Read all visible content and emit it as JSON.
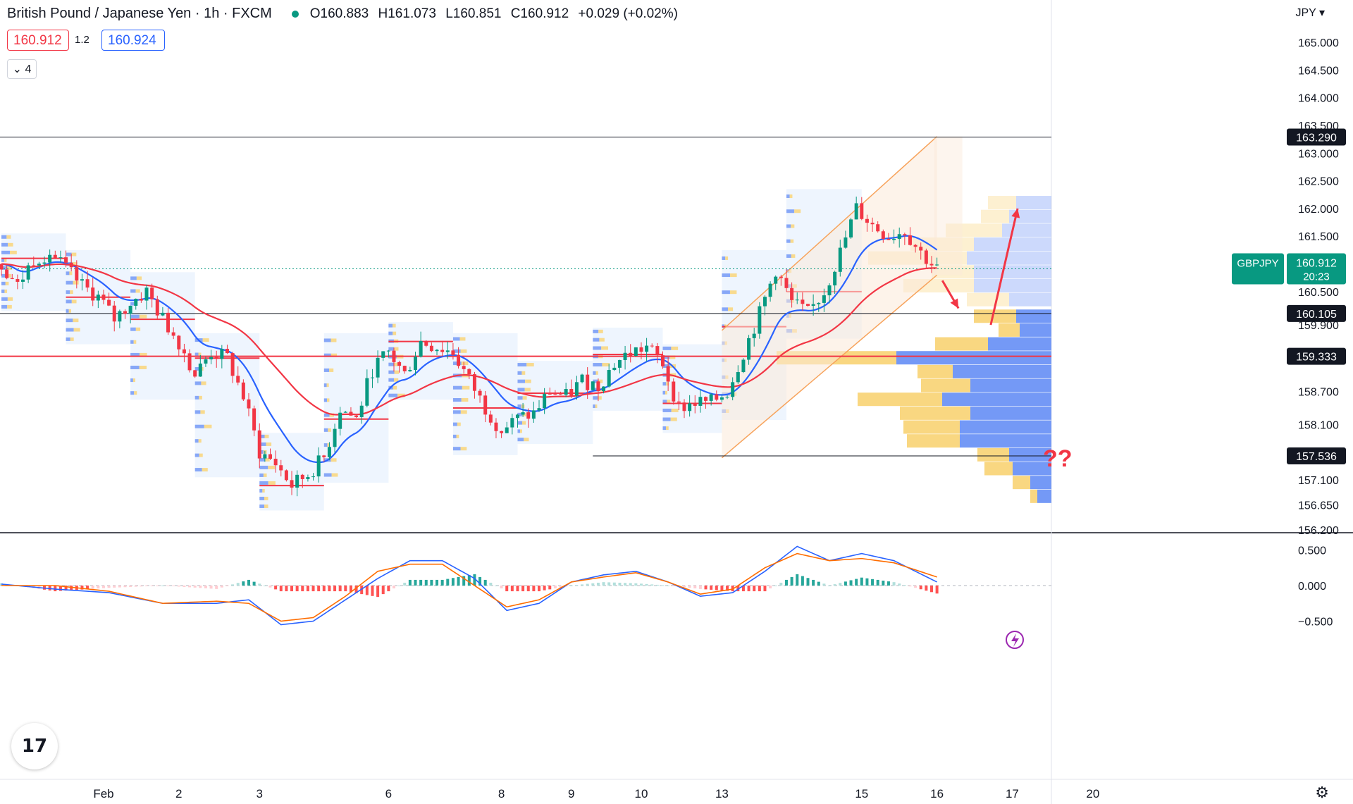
{
  "header": {
    "title": "British Pound / Japanese Yen · 1h · FXCM",
    "open": "O160.883",
    "high": "H161.073",
    "low": "L160.851",
    "close": "C160.912",
    "change": "+0.029 (+0.02%)"
  },
  "trade": {
    "sell_price": "160.912",
    "spread": "1.2",
    "buy_price": "160.924"
  },
  "indicators_count": "4",
  "collapse_icon": "chevron-down-icon",
  "currency": "JPY",
  "symbol_tag": "GBPJPY",
  "countdown": "20:23",
  "question_marks": "??",
  "settings_icon": "gear-icon",
  "alert_icon": "lightning-icon",
  "logo_text": "17",
  "colors": {
    "up": "#089981",
    "down": "#f23645",
    "ema_blue": "#2962ff",
    "ema_red": "#f23645",
    "macd": "#2962ff",
    "signal": "#ff6d00",
    "channel_fill": "#fbe9d9",
    "vp_yellow": "#f9d57a",
    "vp_blue": "#6d93f5"
  },
  "chart_data": {
    "type": "candlestick",
    "symbol": "GBPJPY",
    "timeframe": "1h",
    "price_axis": {
      "min": 156.2,
      "max": 165.3,
      "ticks": [
        165.0,
        164.5,
        164.0,
        163.5,
        163.0,
        162.5,
        162.0,
        161.5,
        160.5,
        159.9,
        158.7,
        158.1,
        157.1,
        156.65,
        156.2
      ],
      "tick_labels": [
        "165.000",
        "164.500",
        "164.000",
        "163.500",
        "163.000",
        "162.500",
        "162.000",
        "161.500",
        "160.500",
        "159.900",
        "158.700",
        "158.100",
        "157.100",
        "156.650",
        "156.200"
      ]
    },
    "horizontal_levels": [
      {
        "value": 163.29,
        "label": "163.290",
        "color": "#131722"
      },
      {
        "value": 160.105,
        "label": "160.105",
        "color": "#131722"
      },
      {
        "value": 159.333,
        "label": "159.333",
        "color": "#f23645"
      },
      {
        "value": 157.536,
        "label": "157.536",
        "color": "#131722"
      }
    ],
    "last_price": {
      "value": 160.912,
      "label": "160.912"
    },
    "x_labels": [
      {
        "t": 19,
        "label": "Feb"
      },
      {
        "t": 33,
        "label": "2"
      },
      {
        "t": 48,
        "label": "3"
      },
      {
        "t": 72,
        "label": "6"
      },
      {
        "t": 93,
        "label": "8"
      },
      {
        "t": 106,
        "label": "9"
      },
      {
        "t": 119,
        "label": "10"
      },
      {
        "t": 134,
        "label": "13"
      },
      {
        "t": 160,
        "label": "15"
      },
      {
        "t": 174,
        "label": "16"
      },
      {
        "t": 188,
        "label": "17"
      },
      {
        "t": 203,
        "label": "20"
      }
    ],
    "close_path": [
      [
        0,
        161.0
      ],
      [
        3,
        160.6
      ],
      [
        6,
        161.1
      ],
      [
        9,
        161.2
      ],
      [
        12,
        160.9
      ],
      [
        15,
        160.6
      ],
      [
        18,
        160.4
      ],
      [
        21,
        160.0
      ],
      [
        24,
        160.3
      ],
      [
        27,
        160.5
      ],
      [
        30,
        160.0
      ],
      [
        33,
        159.6
      ],
      [
        36,
        159.0
      ],
      [
        39,
        159.4
      ],
      [
        42,
        159.3
      ],
      [
        45,
        158.6
      ],
      [
        48,
        157.6
      ],
      [
        51,
        157.4
      ],
      [
        54,
        157.0
      ],
      [
        57,
        157.2
      ],
      [
        60,
        157.5
      ],
      [
        63,
        158.4
      ],
      [
        66,
        158.2
      ],
      [
        69,
        159.1
      ],
      [
        72,
        159.4
      ],
      [
        75,
        159.0
      ],
      [
        78,
        159.6
      ],
      [
        81,
        159.5
      ],
      [
        84,
        159.4
      ],
      [
        87,
        158.9
      ],
      [
        90,
        158.4
      ],
      [
        93,
        158.0
      ],
      [
        96,
        158.2
      ],
      [
        99,
        158.3
      ],
      [
        102,
        158.7
      ],
      [
        105,
        158.6
      ],
      [
        108,
        158.9
      ],
      [
        111,
        158.8
      ],
      [
        114,
        159.2
      ],
      [
        117,
        159.4
      ],
      [
        120,
        159.5
      ],
      [
        123,
        159.2
      ],
      [
        126,
        158.4
      ],
      [
        129,
        158.5
      ],
      [
        132,
        158.5
      ],
      [
        135,
        158.7
      ],
      [
        138,
        159.4
      ],
      [
        141,
        160.1
      ],
      [
        144,
        160.9
      ],
      [
        147,
        160.3
      ],
      [
        150,
        160.1
      ],
      [
        153,
        160.5
      ],
      [
        156,
        161.2
      ],
      [
        159,
        162.0
      ],
      [
        162,
        161.7
      ],
      [
        165,
        161.5
      ],
      [
        168,
        161.6
      ],
      [
        171,
        161.2
      ],
      [
        174,
        160.9
      ]
    ],
    "channel": {
      "lower": [
        [
          134,
          157.5
        ],
        [
          174,
          160.8
        ]
      ],
      "upper": [
        [
          134,
          159.8
        ],
        [
          174,
          163.3
        ]
      ]
    },
    "arrows": [
      {
        "from": [
          175,
          160.7
        ],
        "to": [
          178,
          160.2
        ],
        "color": "#f23645"
      },
      {
        "from": [
          184,
          159.9
        ],
        "to": [
          189,
          162.0
        ],
        "color": "#f23645"
      }
    ],
    "macd_axis": {
      "ticks": [
        0.5,
        0.0,
        -0.5
      ],
      "tick_labels": [
        "0.500",
        "0.000",
        "−0.500"
      ]
    },
    "macd_path": [
      [
        0,
        0.02
      ],
      [
        10,
        -0.05
      ],
      [
        20,
        -0.1
      ],
      [
        30,
        -0.25
      ],
      [
        40,
        -0.25
      ],
      [
        46,
        -0.2
      ],
      [
        52,
        -0.55
      ],
      [
        58,
        -0.5
      ],
      [
        64,
        -0.2
      ],
      [
        70,
        0.1
      ],
      [
        76,
        0.35
      ],
      [
        82,
        0.35
      ],
      [
        88,
        0.1
      ],
      [
        94,
        -0.35
      ],
      [
        100,
        -0.25
      ],
      [
        106,
        0.05
      ],
      [
        112,
        0.15
      ],
      [
        118,
        0.2
      ],
      [
        124,
        0.05
      ],
      [
        130,
        -0.15
      ],
      [
        136,
        -0.1
      ],
      [
        142,
        0.2
      ],
      [
        148,
        0.55
      ],
      [
        154,
        0.35
      ],
      [
        160,
        0.45
      ],
      [
        166,
        0.35
      ],
      [
        174,
        0.05
      ]
    ],
    "signal_path": [
      [
        0,
        0.0
      ],
      [
        10,
        0.0
      ],
      [
        20,
        -0.08
      ],
      [
        30,
        -0.25
      ],
      [
        40,
        -0.22
      ],
      [
        46,
        -0.25
      ],
      [
        52,
        -0.5
      ],
      [
        58,
        -0.45
      ],
      [
        64,
        -0.15
      ],
      [
        70,
        0.2
      ],
      [
        76,
        0.3
      ],
      [
        82,
        0.3
      ],
      [
        88,
        0.0
      ],
      [
        94,
        -0.3
      ],
      [
        100,
        -0.2
      ],
      [
        106,
        0.05
      ],
      [
        112,
        0.12
      ],
      [
        118,
        0.18
      ],
      [
        124,
        0.05
      ],
      [
        130,
        -0.12
      ],
      [
        136,
        -0.05
      ],
      [
        142,
        0.25
      ],
      [
        148,
        0.45
      ],
      [
        154,
        0.35
      ],
      [
        160,
        0.38
      ],
      [
        166,
        0.32
      ],
      [
        174,
        0.12
      ]
    ]
  }
}
